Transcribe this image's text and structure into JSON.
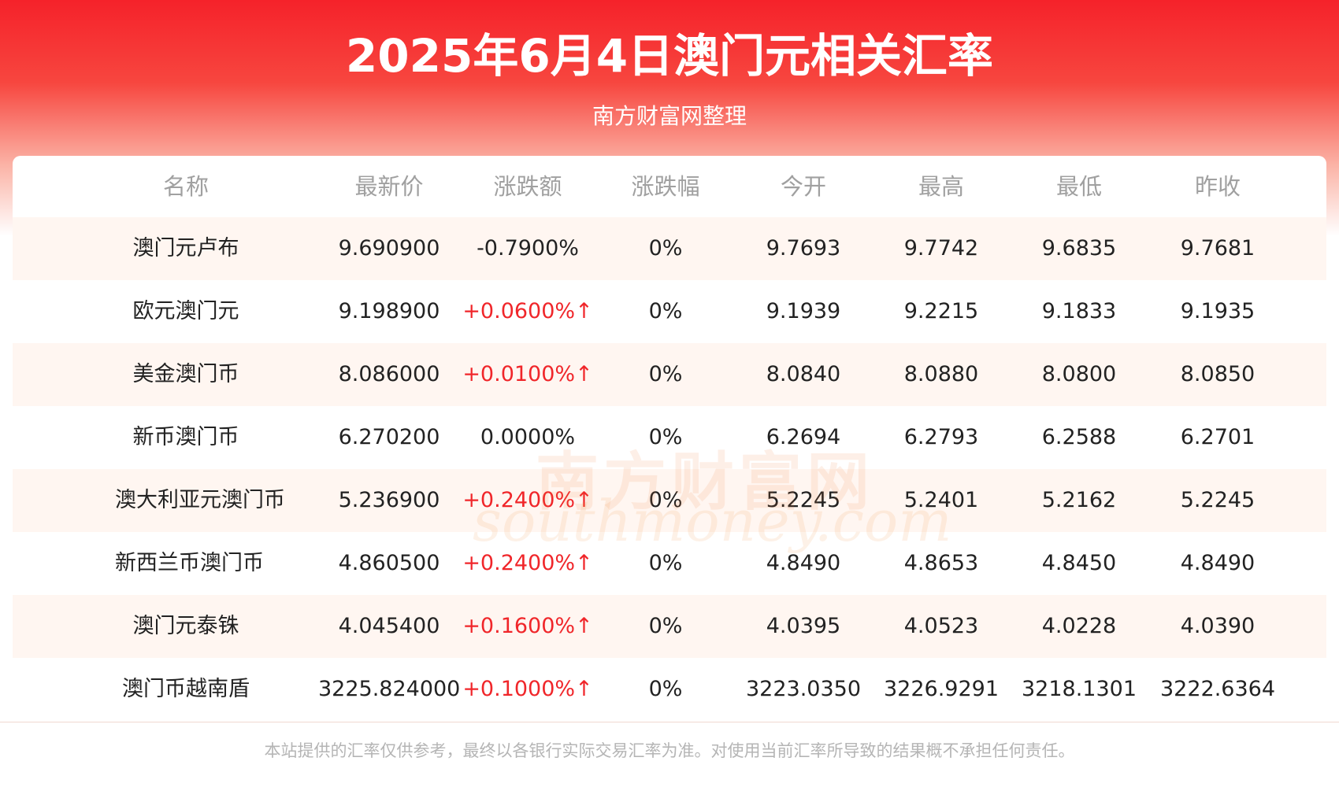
{
  "header": {
    "title": "2025年6月4日澳门元相关汇率",
    "subtitle": "南方财富网整理"
  },
  "table": {
    "columns": [
      "名称",
      "最新价",
      "涨跌额",
      "涨跌幅",
      "今开",
      "最高",
      "最低",
      "昨收"
    ],
    "rows": [
      [
        "澳门元卢布",
        "9.690900",
        "-0.7900%",
        "0%",
        "9.7693",
        "9.7742",
        "9.6835",
        "9.7681"
      ],
      [
        "欧元澳门元",
        "9.198900",
        "+0.0600%↑",
        "0%",
        "9.1939",
        "9.2215",
        "9.1833",
        "9.1935"
      ],
      [
        "美金澳门币",
        "8.086000",
        "+0.0100%↑",
        "0%",
        "8.0840",
        "8.0880",
        "8.0800",
        "8.0850"
      ],
      [
        "新币澳门币",
        "6.270200",
        "0.0000%",
        "0%",
        "6.2694",
        "6.2793",
        "6.2588",
        "6.2701"
      ],
      [
        "澳大利亚元澳门币",
        "5.236900",
        "+0.2400%↑",
        "0%",
        "5.2245",
        "5.2401",
        "5.2162",
        "5.2245"
      ],
      [
        "新西兰币澳门币",
        "4.860500",
        "+0.2400%↑",
        "0%",
        "4.8490",
        "4.8653",
        "4.8450",
        "4.8490"
      ],
      [
        "澳门元泰铢",
        "4.045400",
        "+0.1600%↑",
        "0%",
        "4.0395",
        "4.0523",
        "4.0228",
        "4.0390"
      ],
      [
        "澳门币越南盾",
        "3225.824000",
        "+0.1000%↑",
        "0%",
        "3223.0350",
        "3226.9291",
        "3218.1301",
        "3222.6364"
      ]
    ]
  },
  "watermark": {
    "brand": "南方财富网",
    "site": "southmoney.com"
  },
  "footer": {
    "disclaimer": "本站提供的汇率仅供参考，最终以各银行实际交易汇率为准。对使用当前汇率所导致的结果概不承担任何责任。"
  }
}
